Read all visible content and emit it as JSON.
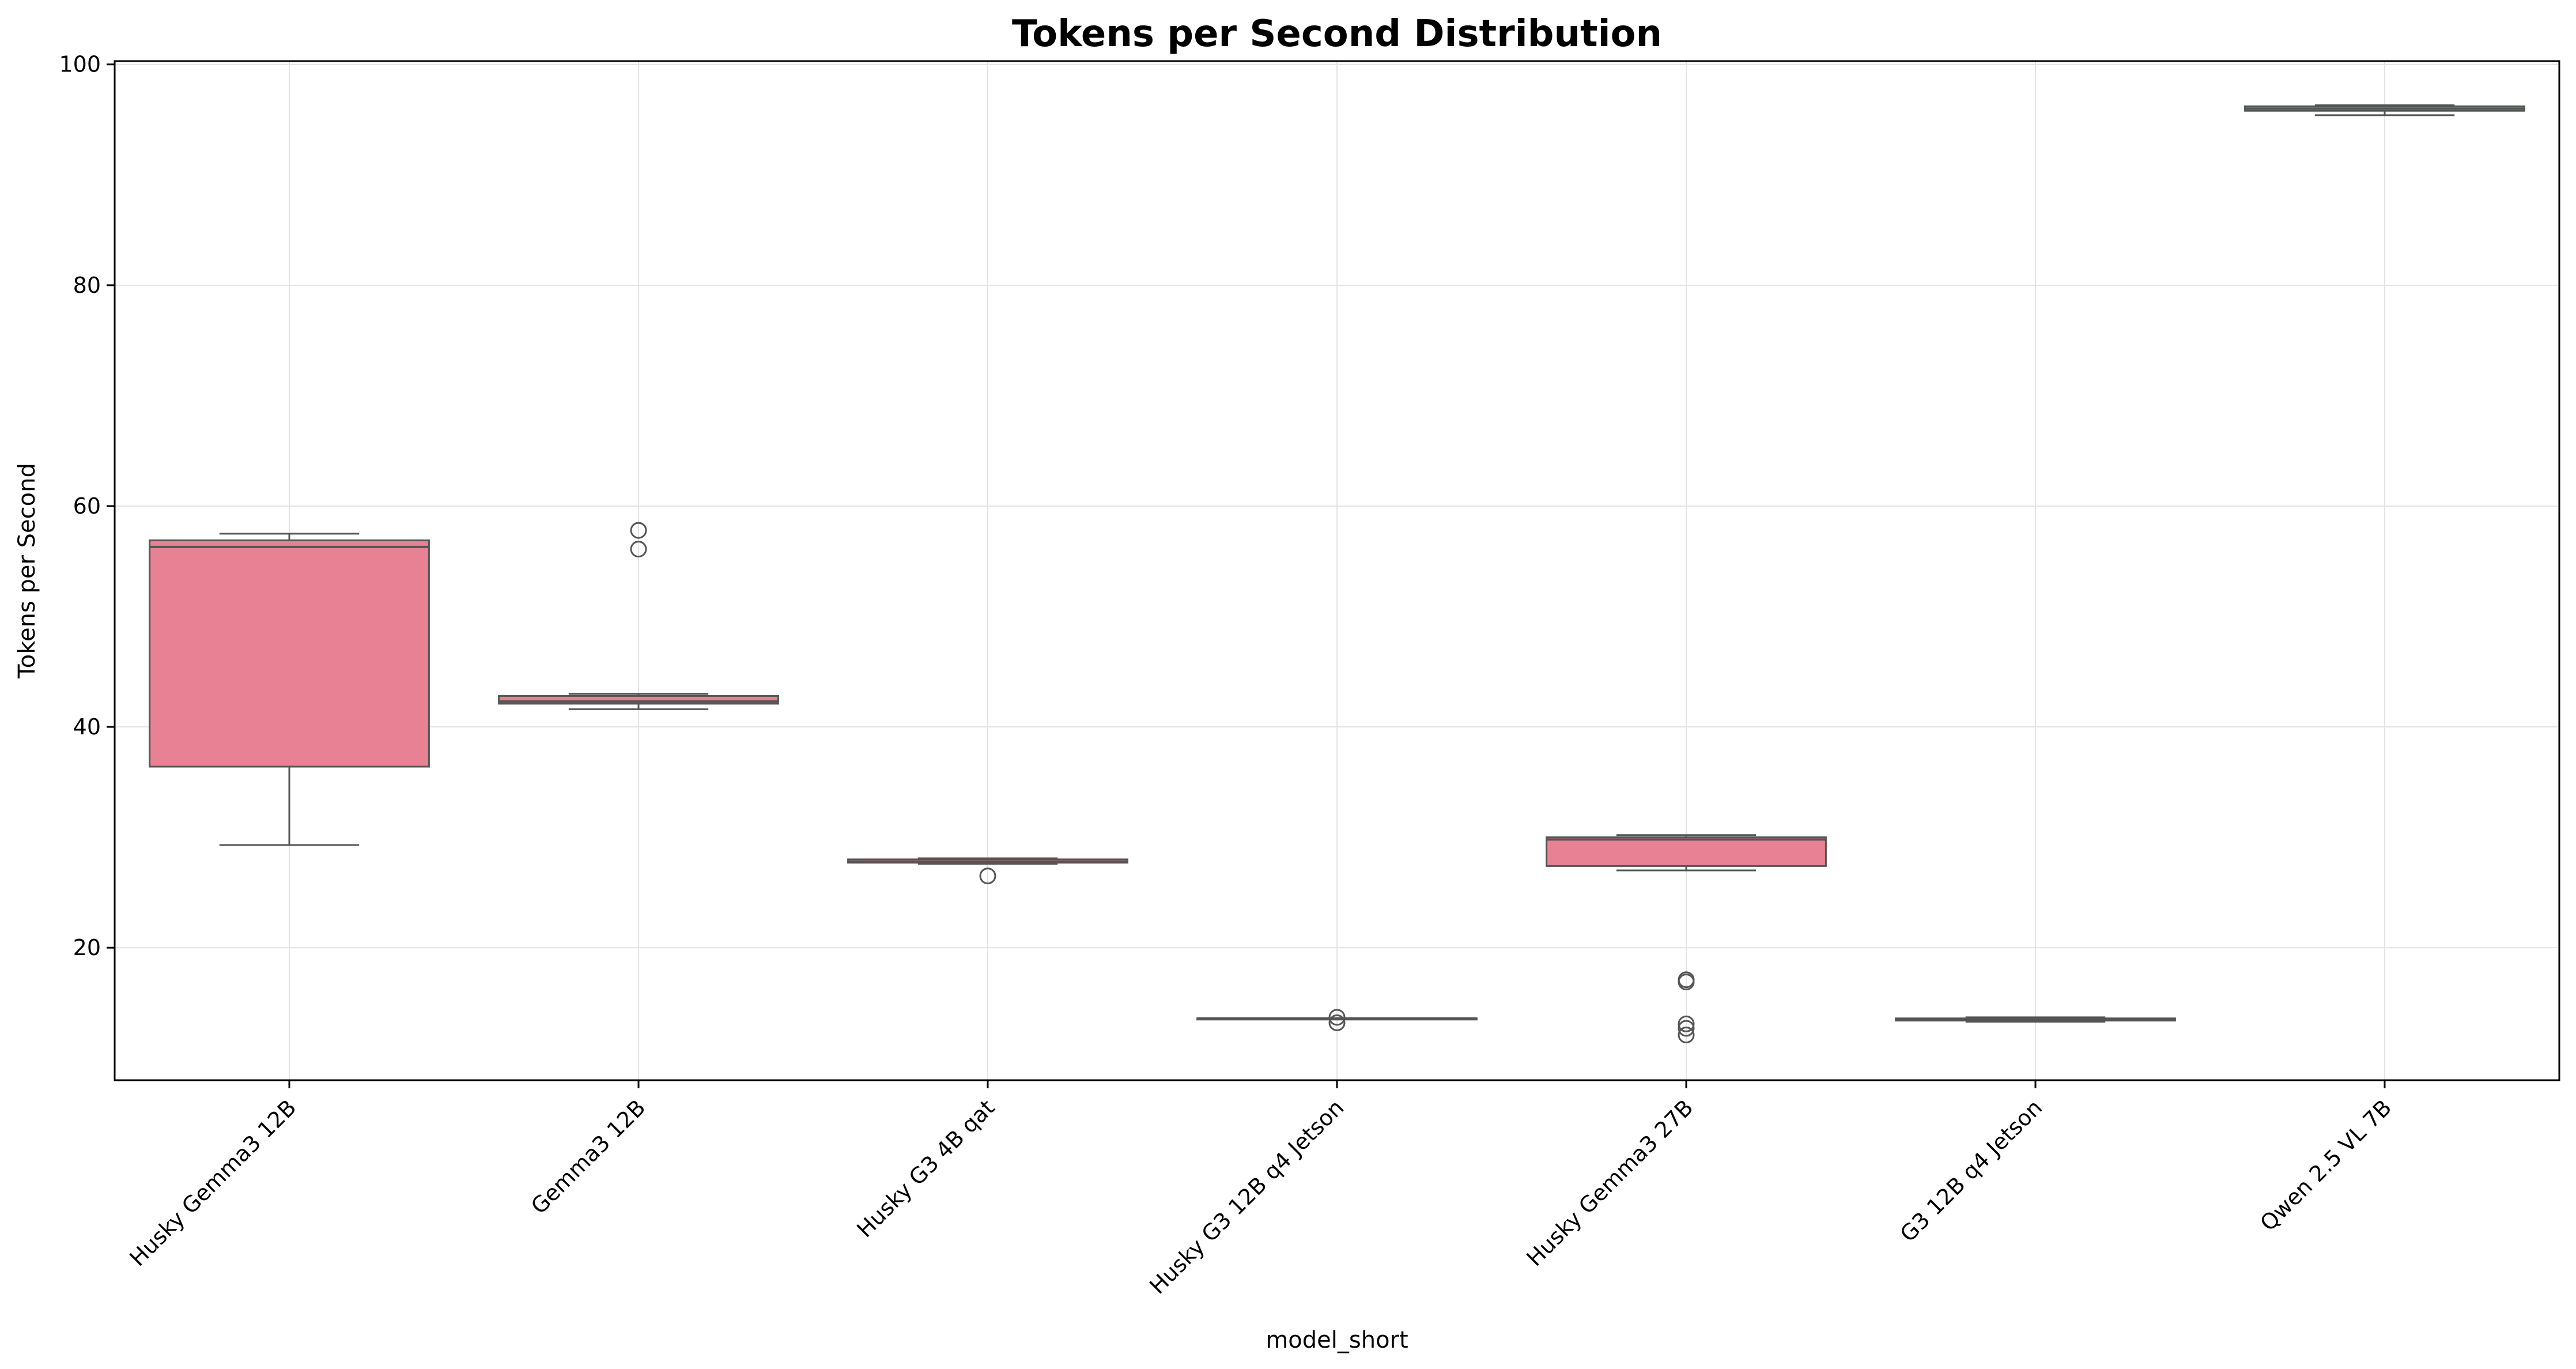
{
  "chart_data": {
    "type": "box",
    "title": "Tokens per Second Distribution",
    "xlabel": "model_short",
    "ylabel": "Tokens per Second",
    "ylim": [
      8,
      100.3
    ],
    "yticks": [
      20,
      40,
      60,
      80,
      100
    ],
    "grid": true,
    "legend": "none",
    "box_color": "#e88193",
    "line_color": "#555555",
    "categories": [
      "Husky Gemma3 12B",
      "Gemma3 12B",
      "Husky G3 4B qat",
      "Husky G3 12B q4 Jetson",
      "Husky Gemma3 27B",
      "G3 12B q4 Jetson",
      "Qwen 2.5 VL 7B"
    ],
    "boxes": [
      {
        "whisker_low": 29.3,
        "q1": 36.4,
        "median": 56.3,
        "q3": 56.9,
        "whisker_high": 57.5,
        "outliers": []
      },
      {
        "whisker_low": 41.6,
        "q1": 42.1,
        "median": 42.3,
        "q3": 42.8,
        "whisker_high": 43.0,
        "outliers": [
          56.1,
          57.8
        ]
      },
      {
        "whisker_low": 27.6,
        "q1": 27.7,
        "median": 27.8,
        "q3": 28.0,
        "whisker_high": 28.1,
        "outliers": [
          26.5
        ]
      },
      {
        "whisker_low": 13.6,
        "q1": 13.6,
        "median": 13.6,
        "q3": 13.6,
        "whisker_high": 13.6,
        "outliers": [
          13.2,
          13.7
        ]
      },
      {
        "whisker_low": 27.0,
        "q1": 27.4,
        "median": 29.8,
        "q3": 30.0,
        "whisker_high": 30.2,
        "outliers": [
          12.1,
          12.7,
          13.1,
          16.9,
          17.1
        ]
      },
      {
        "whisker_low": 13.3,
        "q1": 13.4,
        "median": 13.5,
        "q3": 13.6,
        "whisker_high": 13.7,
        "outliers": []
      },
      {
        "whisker_low": 95.4,
        "q1": 95.8,
        "median": 96.0,
        "q3": 96.2,
        "whisker_high": 96.3,
        "outliers": []
      }
    ]
  }
}
